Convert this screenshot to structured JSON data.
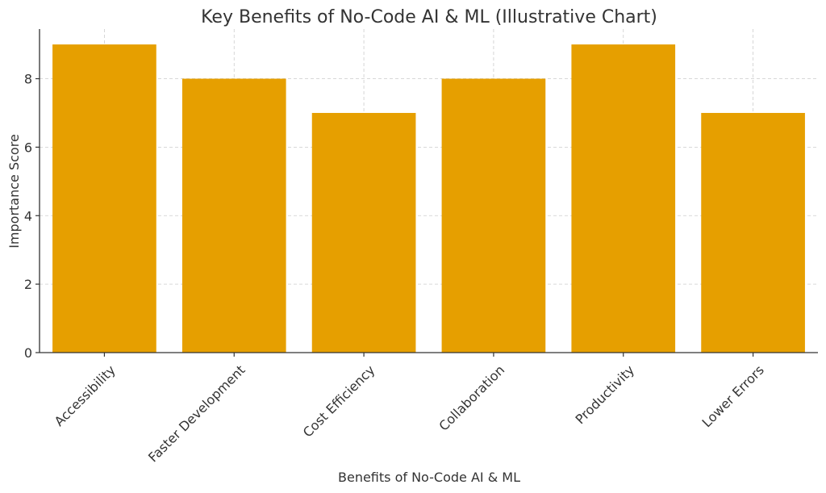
{
  "chart_data": {
    "type": "bar",
    "title": "Key Benefits of No-Code AI & ML (Illustrative Chart)",
    "xlabel": "Benefits of No-Code AI & ML",
    "ylabel": "Importance Score",
    "categories": [
      "Accessibility",
      "Faster Development",
      "Cost Efficiency",
      "Collaboration",
      "Productivity",
      "Lower Errors"
    ],
    "values": [
      9,
      8,
      7,
      8,
      9,
      7
    ],
    "ylim": [
      0,
      9.45
    ],
    "yticks": [
      0,
      2,
      4,
      6,
      8
    ],
    "grid": true,
    "bar_color": "#E69F00",
    "xtick_rotation": 45
  }
}
